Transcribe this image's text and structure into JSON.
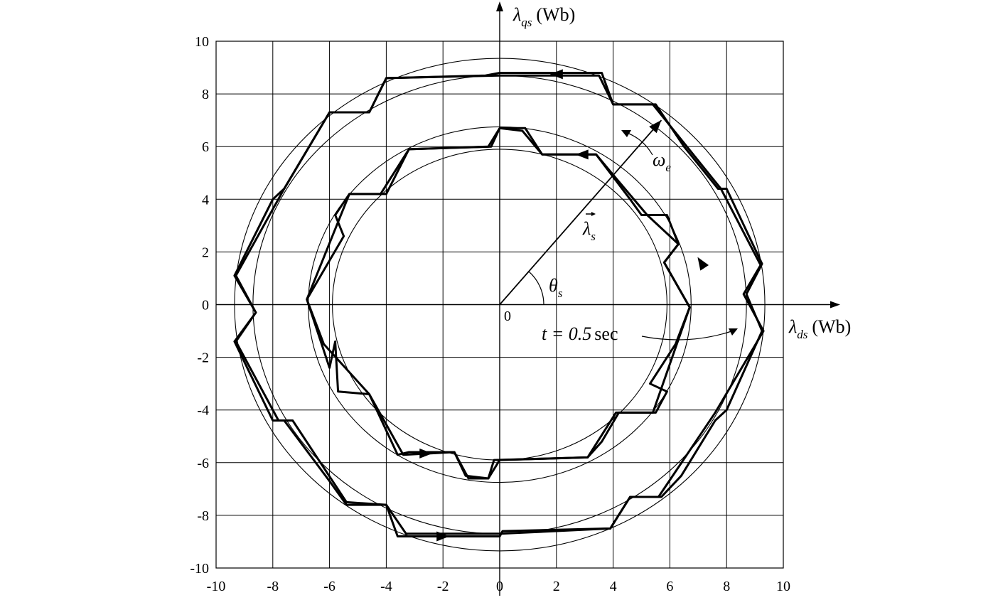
{
  "chart_data": {
    "type": "line",
    "xlim": [
      -10,
      10
    ],
    "ylim": [
      -10,
      10
    ],
    "grid": true,
    "x_ticks": [
      -10,
      -8,
      -6,
      -4,
      -2,
      0,
      2,
      4,
      6,
      8,
      10
    ],
    "y_ticks": [
      -10,
      -8,
      -6,
      -4,
      -2,
      0,
      2,
      4,
      6,
      8,
      10
    ],
    "x_axis_label": {
      "symbol": "λ",
      "subscript": "ds",
      "unit": "(Wb)"
    },
    "y_axis_label": {
      "symbol": "λ",
      "subscript": "qs",
      "unit": "(Wb)"
    },
    "origin_label": "0",
    "annotations": {
      "omega": {
        "symbol": "ω",
        "subscript": "e"
      },
      "lambda_s": {
        "symbol": "λ",
        "subscript": "s"
      },
      "theta_s": {
        "symbol": "θ",
        "subscript": "s"
      },
      "time": {
        "text": "t = 0.5",
        "unit": "sec"
      }
    },
    "reference_circles": [
      {
        "r": 9.35
      },
      {
        "r": 8.7
      },
      {
        "r": 6.75
      },
      {
        "r": 5.9
      }
    ],
    "series": [
      {
        "values": [
          [
            0.0,
            8.8
          ],
          [
            3.6,
            8.8
          ],
          [
            4.0,
            7.6
          ],
          [
            5.5,
            7.6
          ],
          [
            6.5,
            6.0
          ],
          [
            7.7,
            4.4
          ],
          [
            8.0,
            4.4
          ],
          [
            9.25,
            1.55
          ],
          [
            8.7,
            0.4
          ],
          [
            9.25,
            -1.0
          ],
          [
            8.0,
            -4.0
          ],
          [
            7.6,
            -4.4
          ],
          [
            6.4,
            -6.5
          ],
          [
            5.7,
            -7.3
          ],
          [
            4.6,
            -7.3
          ],
          [
            3.9,
            -8.5
          ],
          [
            0.1,
            -8.6
          ],
          [
            0.0,
            -8.8
          ],
          [
            -3.3,
            -8.8
          ],
          [
            -3.6,
            -8.8
          ],
          [
            -4.0,
            -7.6
          ],
          [
            -5.4,
            -7.6
          ],
          [
            -6.0,
            -6.7
          ],
          [
            -7.6,
            -4.4
          ],
          [
            -8.0,
            -4.4
          ],
          [
            -9.35,
            -1.4
          ],
          [
            -8.6,
            -0.3
          ],
          [
            -9.35,
            1.1
          ],
          [
            -8.0,
            4.0
          ],
          [
            -7.6,
            4.4
          ],
          [
            -6.0,
            7.3
          ],
          [
            -4.6,
            7.3
          ],
          [
            -4.0,
            8.6
          ],
          [
            -0.5,
            8.7
          ],
          [
            0.0,
            8.8
          ]
        ]
      },
      {
        "values": [
          [
            0.0,
            6.7
          ],
          [
            0.9,
            6.7
          ],
          [
            1.5,
            5.7
          ],
          [
            3.4,
            5.7
          ],
          [
            4.6,
            4.0
          ],
          [
            5.0,
            3.4
          ],
          [
            5.9,
            3.4
          ],
          [
            6.3,
            2.3
          ],
          [
            5.8,
            1.6
          ],
          [
            6.7,
            -0.1
          ],
          [
            6.2,
            -1.5
          ],
          [
            5.3,
            -3.0
          ],
          [
            5.9,
            -3.3
          ],
          [
            5.5,
            -4.1
          ],
          [
            4.2,
            -4.1
          ],
          [
            3.6,
            -5.2
          ],
          [
            3.1,
            -5.8
          ],
          [
            -0.2,
            -5.9
          ],
          [
            -0.4,
            -6.6
          ],
          [
            -1.1,
            -6.6
          ],
          [
            -1.6,
            -5.6
          ],
          [
            -3.2,
            -5.6
          ],
          [
            -3.6,
            -5.7
          ],
          [
            -4.6,
            -3.4
          ],
          [
            -5.7,
            -3.3
          ],
          [
            -5.8,
            -1.4
          ],
          [
            -6.0,
            -2.4
          ],
          [
            -6.8,
            0.2
          ],
          [
            -5.5,
            2.6
          ],
          [
            -5.8,
            3.4
          ],
          [
            -5.3,
            4.2
          ],
          [
            -4.2,
            4.2
          ],
          [
            -3.2,
            5.9
          ],
          [
            -0.3,
            6.0
          ],
          [
            0.0,
            6.7
          ]
        ]
      },
      {
        "values": [
          [
            0.0,
            8.7
          ],
          [
            -4.0,
            8.6
          ],
          [
            -4.6,
            7.3
          ],
          [
            -6.0,
            7.3
          ],
          [
            -7.6,
            4.4
          ],
          [
            -9.3,
            1.1
          ],
          [
            -8.6,
            -0.3
          ],
          [
            -9.3,
            -1.4
          ],
          [
            -7.8,
            -4.4
          ],
          [
            -7.3,
            -4.4
          ],
          [
            -5.4,
            -7.5
          ],
          [
            -4.0,
            -7.6
          ],
          [
            -3.3,
            -8.7
          ],
          [
            0.0,
            -8.7
          ],
          [
            3.9,
            -8.5
          ],
          [
            4.6,
            -7.3
          ],
          [
            5.6,
            -7.3
          ],
          [
            7.6,
            -4.1
          ],
          [
            9.3,
            -1.0
          ],
          [
            8.6,
            0.4
          ],
          [
            9.2,
            1.5
          ],
          [
            7.8,
            4.4
          ],
          [
            5.4,
            7.6
          ],
          [
            4.0,
            7.6
          ],
          [
            3.5,
            8.7
          ],
          [
            0.0,
            8.7
          ]
        ]
      },
      {
        "values": [
          [
            -6.8,
            0.2
          ],
          [
            -6.2,
            -1.5
          ],
          [
            -4.6,
            -3.4
          ],
          [
            -3.4,
            -5.7
          ],
          [
            -1.6,
            -5.6
          ],
          [
            -1.2,
            -6.5
          ],
          [
            -0.4,
            -6.6
          ],
          [
            0.0,
            -5.9
          ],
          [
            3.1,
            -5.8
          ],
          [
            4.1,
            -4.1
          ],
          [
            5.4,
            -4.1
          ],
          [
            6.7,
            -0.1
          ],
          [
            5.8,
            1.6
          ],
          [
            6.3,
            2.3
          ],
          [
            5.2,
            3.4
          ],
          [
            4.1,
            4.8
          ],
          [
            3.4,
            5.7
          ],
          [
            1.5,
            5.7
          ],
          [
            0.8,
            6.6
          ],
          [
            0.0,
            6.7
          ],
          [
            -0.4,
            6.0
          ],
          [
            -3.2,
            5.9
          ],
          [
            -4.0,
            4.2
          ],
          [
            -5.3,
            4.2
          ],
          [
            -6.8,
            0.2
          ]
        ]
      }
    ]
  }
}
